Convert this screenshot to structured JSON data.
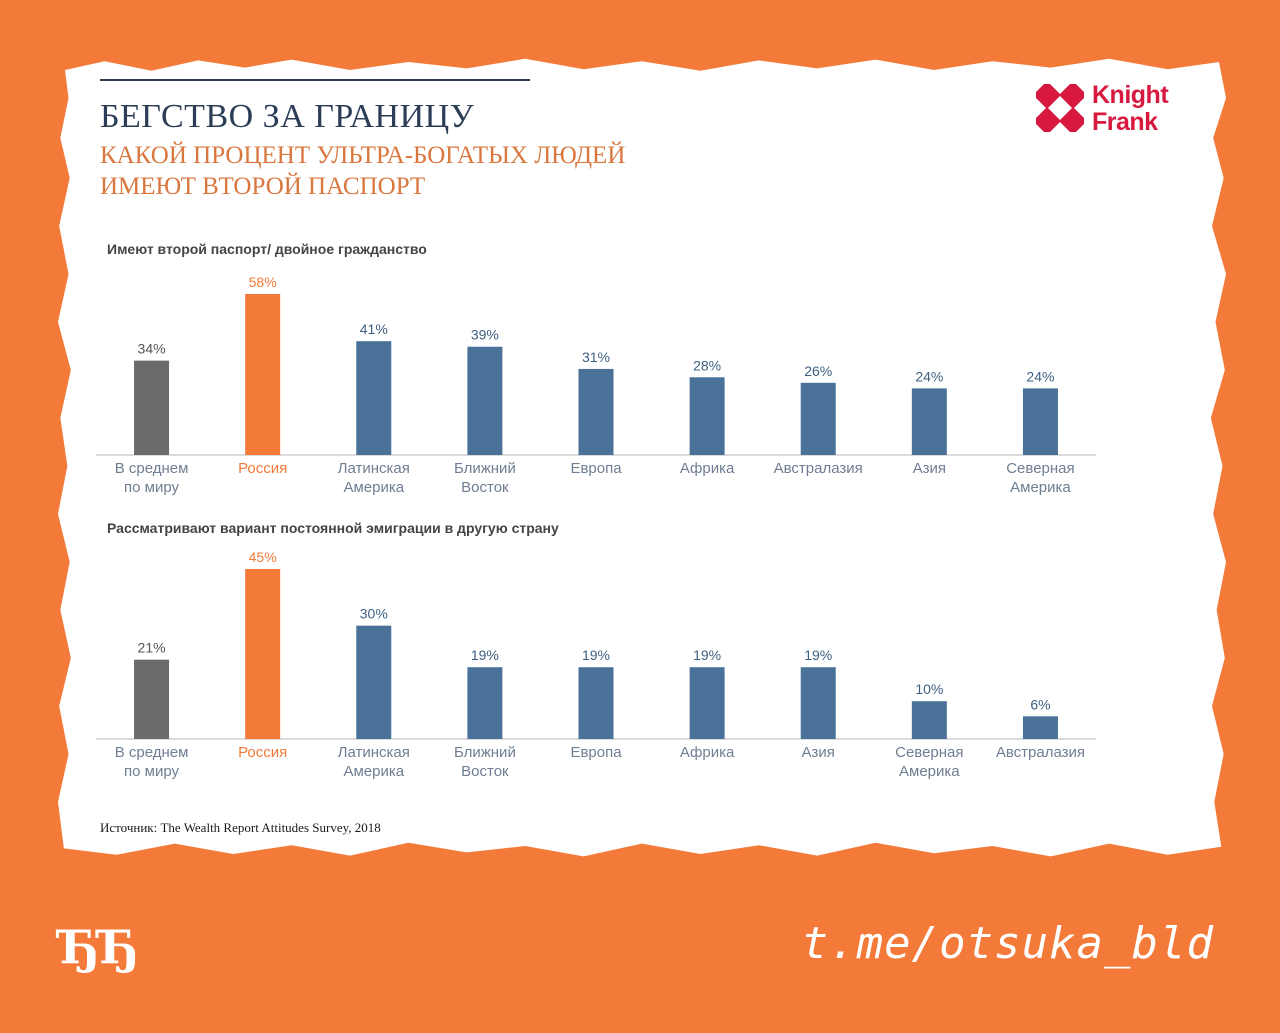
{
  "title": "БЕГСТВО ЗА ГРАНИЦУ",
  "subtitle_line1": "КАКОЙ ПРОЦЕНТ УЛЬТРА-БОГАТЫХ ЛЮДЕЙ",
  "subtitle_line2": "ИМЕЮТ ВТОРОЙ ПАСПОРТ",
  "logo": {
    "line1": "Knight",
    "line2": "Frank",
    "color": "#D7193F"
  },
  "source": "Источник: The Wealth Report Attitudes Survey, 2018",
  "brand_left": "ЂЂ",
  "brand_right": "t.me/otsuka_bld",
  "colors": {
    "world": "#6B6B6B",
    "russia": "#F47A3A",
    "region": "#4A7299",
    "background": "#F47A3A"
  },
  "chart_data": [
    {
      "type": "bar",
      "title": "Имеют второй паспорт/ двойное гражданство",
      "categories": [
        [
          "В среднем",
          "по миру"
        ],
        [
          "Россия"
        ],
        [
          "Латинская",
          "Америка"
        ],
        [
          "Ближний",
          "Восток"
        ],
        [
          "Европа"
        ],
        [
          "Африка"
        ],
        [
          "Австралазия"
        ],
        [
          "Азия"
        ],
        [
          "Северная",
          "Америка"
        ]
      ],
      "values": [
        34,
        58,
        41,
        39,
        31,
        28,
        26,
        24,
        24
      ],
      "value_labels": [
        "34%",
        "58%",
        "41%",
        "39%",
        "31%",
        "28%",
        "26%",
        "24%",
        "24%"
      ],
      "highlight": [
        "world",
        "russia",
        "region",
        "region",
        "region",
        "region",
        "region",
        "region",
        "region"
      ],
      "ylim": [
        0,
        58
      ]
    },
    {
      "type": "bar",
      "title": "Рассматривают вариант постоянной эмиграции в другую страну",
      "categories": [
        [
          "В среднем",
          "по миру"
        ],
        [
          "Россия"
        ],
        [
          "Латинская",
          "Америка"
        ],
        [
          "Ближний",
          "Восток"
        ],
        [
          "Европа"
        ],
        [
          "Африка"
        ],
        [
          "Азия"
        ],
        [
          "Северная",
          "Америка"
        ],
        [
          "Австралазия"
        ]
      ],
      "values": [
        21,
        45,
        30,
        19,
        19,
        19,
        19,
        10,
        6
      ],
      "value_labels": [
        "21%",
        "45%",
        "30%",
        "19%",
        "19%",
        "19%",
        "19%",
        "10%",
        "6%"
      ],
      "highlight": [
        "world",
        "russia",
        "region",
        "region",
        "region",
        "region",
        "region",
        "region",
        "region"
      ],
      "ylim": [
        0,
        45
      ]
    }
  ]
}
